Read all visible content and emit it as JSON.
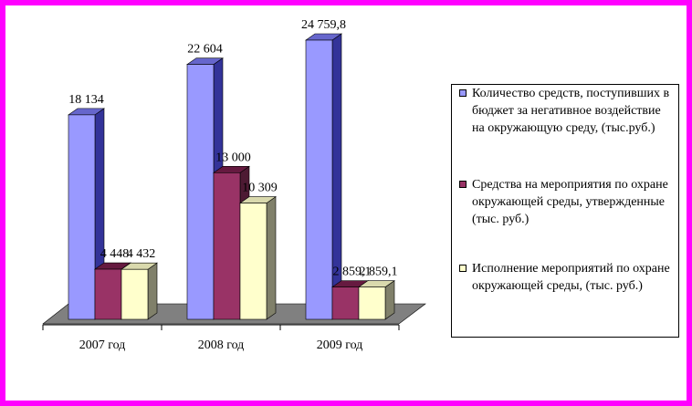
{
  "colors": {
    "frame": "#ff00ff",
    "floor": "#808080",
    "series": [
      {
        "front": "#9999ff",
        "side": "#333399",
        "top": "#6666cc"
      },
      {
        "front": "#993366",
        "side": "#4d1a33",
        "top": "#661a40"
      },
      {
        "front": "#ffffcc",
        "side": "#80806a",
        "top": "#d9d9ad"
      }
    ]
  },
  "chart_data": {
    "type": "bar",
    "categories": [
      "2007 год",
      "2008 год",
      "2009 год"
    ],
    "series": [
      {
        "name": "Количество средств, поступивших в бюджет за негативное воздействие на окружающую среду, (тыс.руб.)",
        "values": [
          18134,
          22604,
          24759.8
        ],
        "labels": [
          "18 134",
          "22 604",
          "24 759,8"
        ]
      },
      {
        "name": "Средства на мероприятия по охране окружающей среды, утвержденные (тыс. руб.)",
        "values": [
          4448,
          13000,
          2859.1
        ],
        "labels": [
          "4 448",
          "13 000",
          "2 859,1"
        ]
      },
      {
        "name": "Исполнение мероприятий по охране окружающей среды, (тыс. руб.)",
        "values": [
          4432,
          10309,
          2859.1
        ],
        "labels": [
          "4 432",
          "10 309",
          "2 859,1"
        ]
      }
    ],
    "three_d": true,
    "legend_position": "right",
    "grid": false
  }
}
